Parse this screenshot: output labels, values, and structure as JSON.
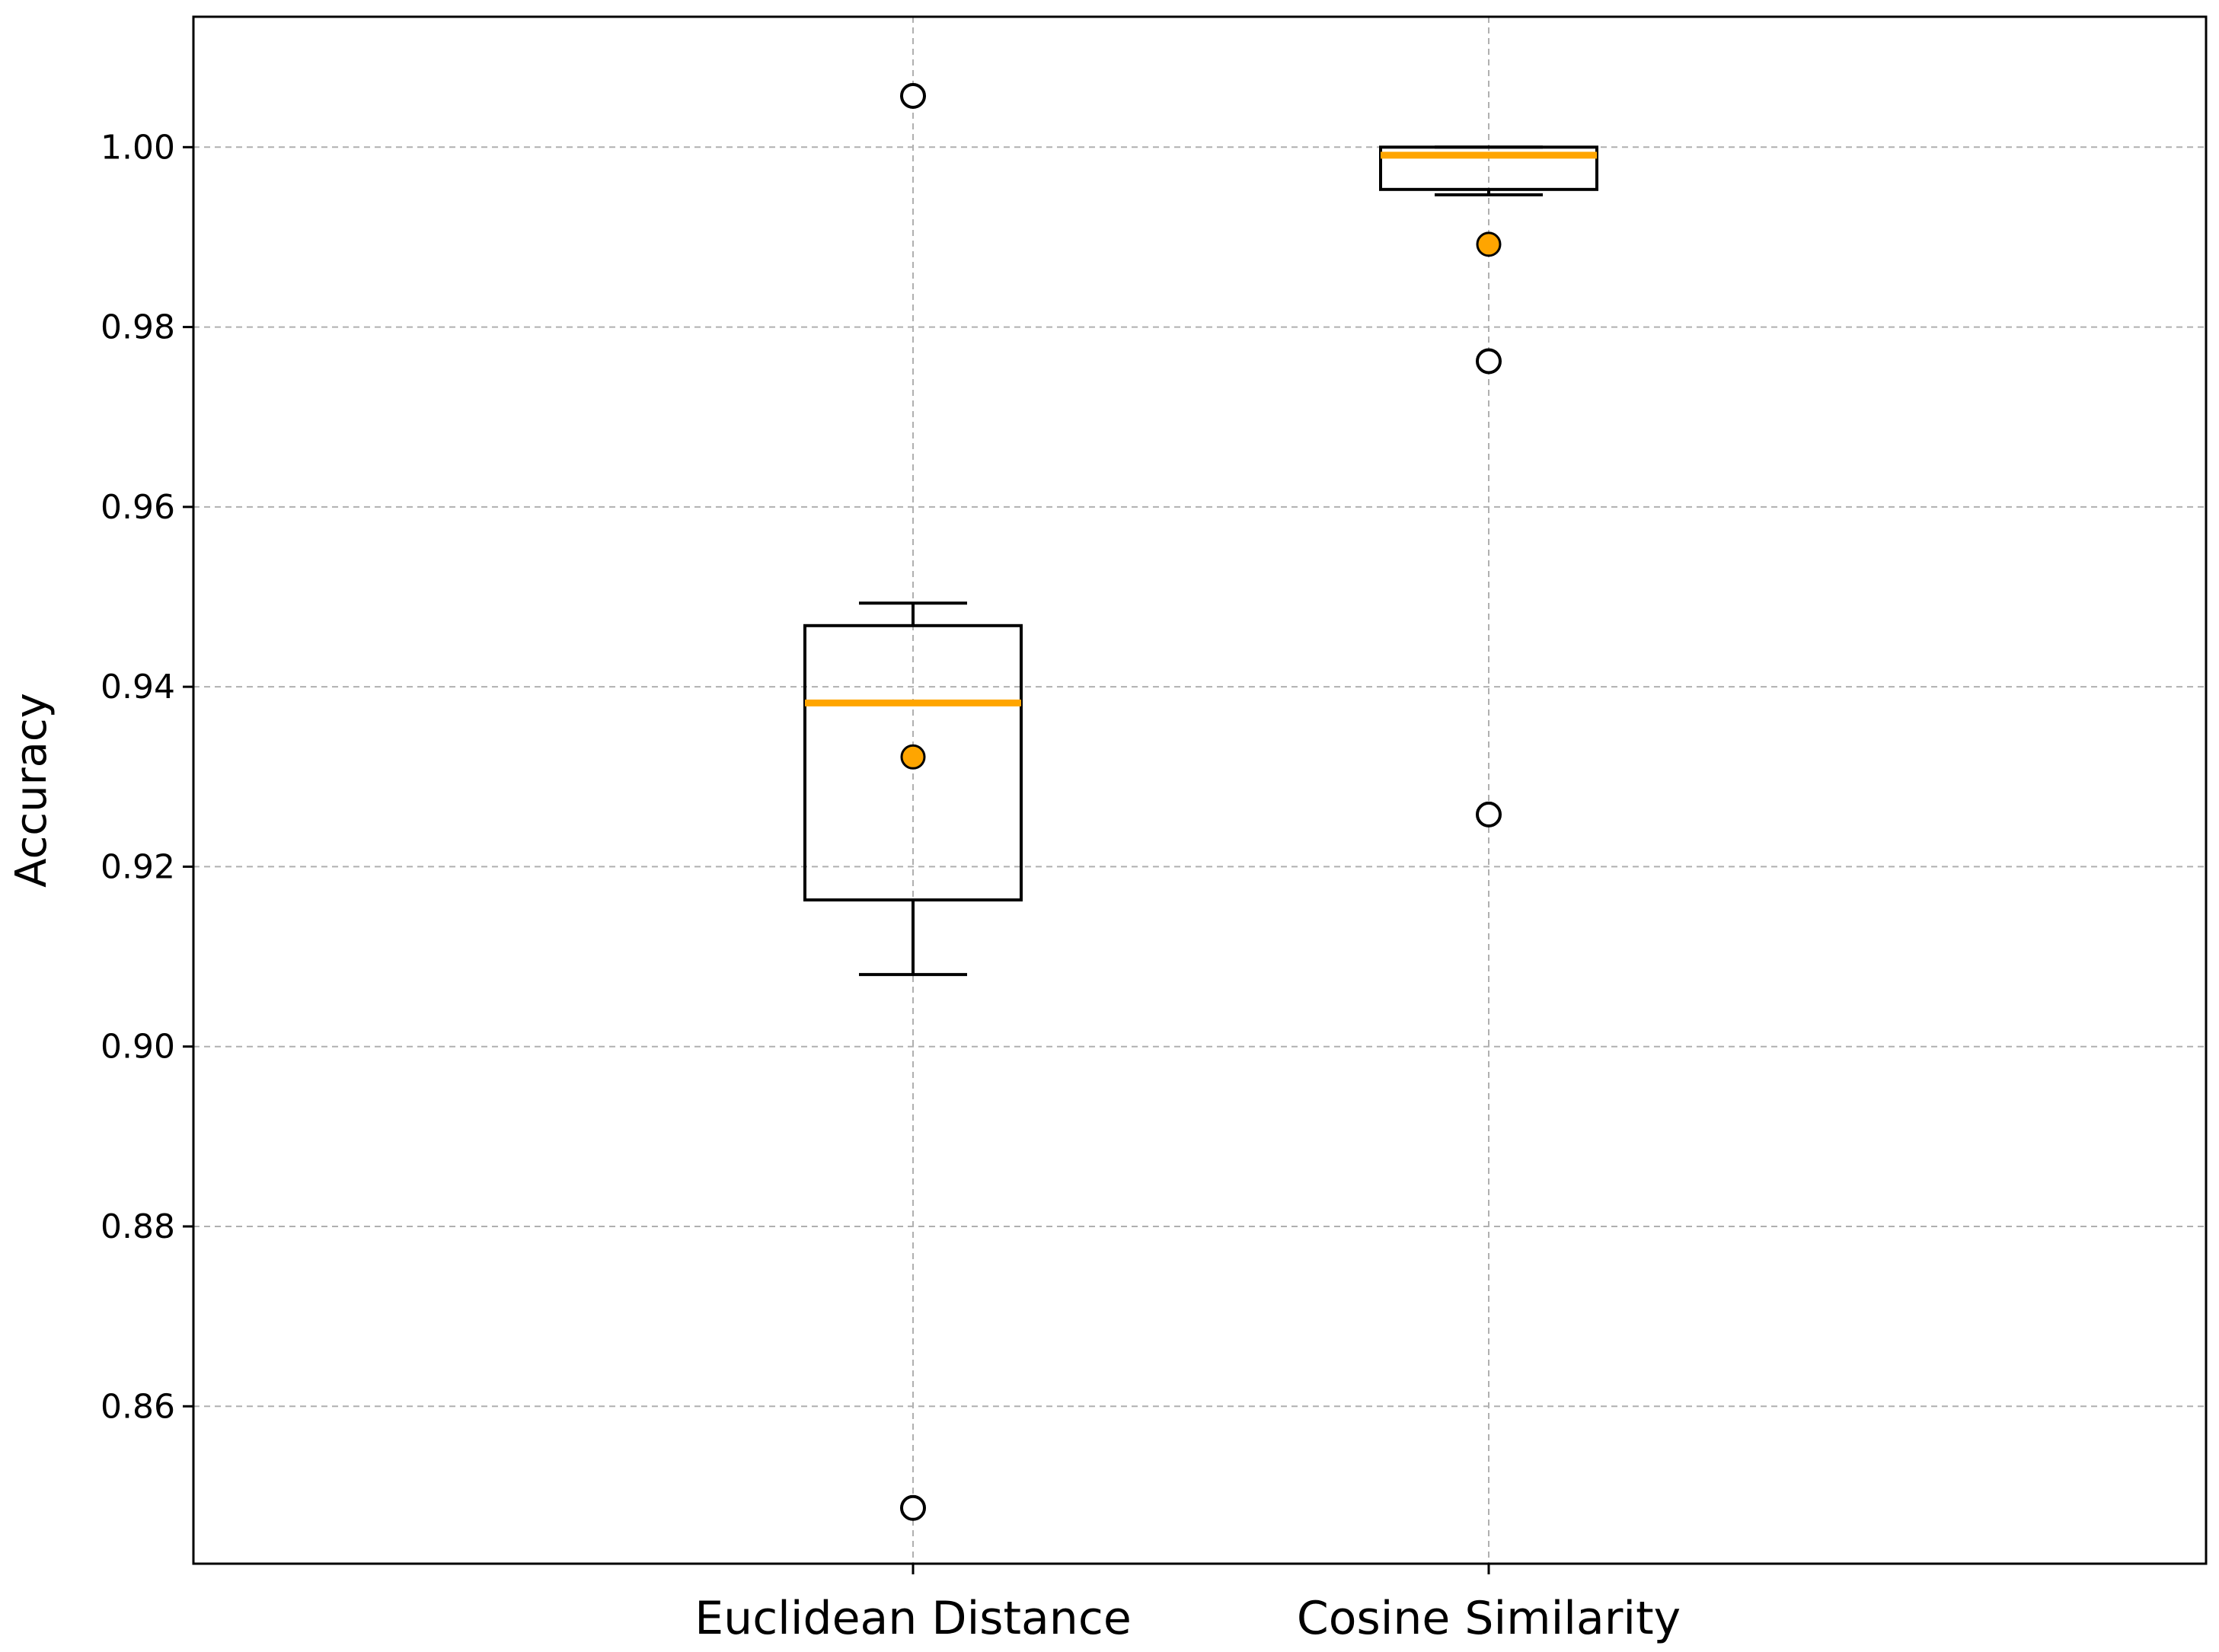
{
  "chart_data": {
    "type": "boxplot",
    "title": "",
    "xlabel": "",
    "ylabel": "Accuracy",
    "ylim": [
      0.8425,
      1.0145
    ],
    "yticks": [
      0.86,
      0.88,
      0.9,
      0.92,
      0.94,
      0.96,
      0.98,
      1.0
    ],
    "ytick_labels": [
      "0.86",
      "0.88",
      "0.90",
      "0.92",
      "0.94",
      "0.96",
      "0.98",
      "1.00"
    ],
    "grid": true,
    "categories": [
      "Euclidean Distance",
      "Cosine Similarity"
    ],
    "boxes": [
      {
        "name": "Euclidean Distance",
        "whisker_low": 0.908,
        "q1": 0.9163,
        "median": 0.9382,
        "q3": 0.9468,
        "whisker_high": 0.9493,
        "mean": 0.9322,
        "outliers": [
          1.0057,
          0.8487
        ]
      },
      {
        "name": "Cosine Similarity",
        "whisker_low": 0.9947,
        "q1": 0.9953,
        "median": 0.9991,
        "q3": 1.0,
        "whisker_high": 1.0,
        "mean": 0.9892,
        "outliers": [
          0.9762,
          0.9258
        ]
      }
    ],
    "colors": {
      "median": "#ffa500",
      "mean_fill": "#ffa500",
      "box_edge": "#000000",
      "grid": "#b0b0b0",
      "outlier_edge": "#000000"
    }
  }
}
